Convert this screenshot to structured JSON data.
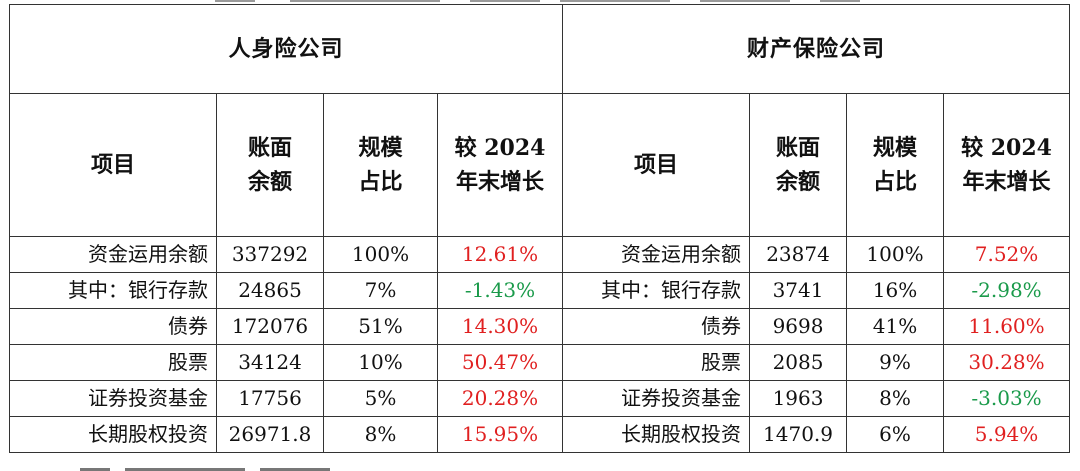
{
  "groups": {
    "life": "人身险公司",
    "property": "财产保险公司"
  },
  "headers": {
    "item": "项目",
    "book_value_line1": "账面",
    "book_value_line2": "余额",
    "scale_line1": "规模",
    "scale_line2": "占比",
    "growth_line1": "较 2024",
    "growth_line2": "年末增长"
  },
  "rows": [
    {
      "label": "资金运用余额",
      "life": {
        "value": "337292",
        "share": "100%",
        "growth": "12.61%"
      },
      "property_label": "资金运用余额",
      "property": {
        "value": "23874",
        "share": "100%",
        "growth": "7.52%"
      }
    },
    {
      "label": "其中：银行存款",
      "life": {
        "value": "24865",
        "share": "7%",
        "growth": "-1.43%"
      },
      "property_label": "其中：银行存款",
      "property": {
        "value": "3741",
        "share": "16%",
        "growth": "-2.98%"
      }
    },
    {
      "label": "债券",
      "life": {
        "value": "172076",
        "share": "51%",
        "growth": "14.30%"
      },
      "property_label": "债券",
      "property": {
        "value": "9698",
        "share": "41%",
        "growth": "11.60%"
      }
    },
    {
      "label": "股票",
      "life": {
        "value": "34124",
        "share": "10%",
        "growth": "50.47%"
      },
      "property_label": "股票",
      "property": {
        "value": "2085",
        "share": "9%",
        "growth": "30.28%"
      }
    },
    {
      "label": "证券投资基金",
      "life": {
        "value": "17756",
        "share": "5%",
        "growth": "20.28%"
      },
      "property_label": "证券投资基金",
      "property": {
        "value": "1963",
        "share": "8%",
        "growth": "-3.03%"
      }
    },
    {
      "label": "长期股权投资",
      "life": {
        "value": "26971.8",
        "share": "8%",
        "growth": "15.95%"
      },
      "property_label": "长期股权投资",
      "property": {
        "value": "1470.9",
        "share": "6%",
        "growth": "5.94%"
      }
    }
  ],
  "colors": {
    "positive": "#e02020",
    "negative": "#1a9a4a",
    "border": "#333333"
  }
}
